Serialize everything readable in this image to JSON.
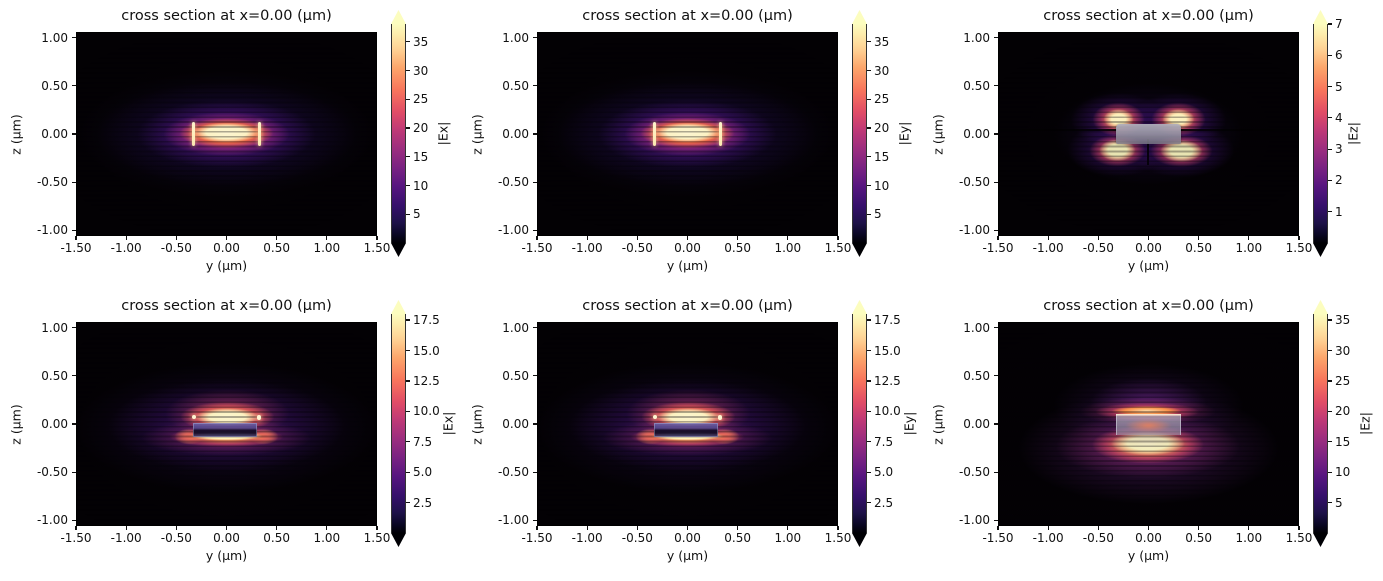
{
  "figure": {
    "rows": 2,
    "cols": 3,
    "background": "#ffffff",
    "colormap": "magma",
    "colormap_low": "#000004",
    "colormap_high": "#fcfdbf",
    "description": "2x3 grid of simulated electric-field magnitude cross sections of an optical waveguide"
  },
  "chart_data": [
    {
      "type": "heatmap",
      "position": "row 1, col 1",
      "title": "cross section at x=0.00 (μm)",
      "xlabel": "y (μm)",
      "ylabel": "z (μm)",
      "xlim": [
        -1.5,
        1.5
      ],
      "ylim": [
        -1.06,
        1.06
      ],
      "xticks": [
        -1.5,
        -1.0,
        -0.5,
        0.0,
        0.5,
        1.0,
        1.5
      ],
      "xtick_labels": [
        "-1.50",
        "-1.00",
        "-0.50",
        "0.00",
        "0.50",
        "1.00",
        "1.50"
      ],
      "yticks": [
        1.0,
        0.5,
        0.0,
        -0.5,
        -1.0
      ],
      "ytick_labels": [
        "1.00",
        "0.50",
        "0.00",
        "-0.50",
        "-1.00"
      ],
      "colorbar": {
        "label": "|Ex|",
        "vmin": 0,
        "vmax": 38.1,
        "ticks": [
          5,
          10,
          15,
          20,
          25,
          30,
          35
        ],
        "tick_labels": [
          "5",
          "10",
          "15",
          "20",
          "25",
          "30",
          "35"
        ],
        "colormap": "magma",
        "extend": "both"
      },
      "waveguide_overlay": false,
      "pattern": "single bright fundamental-mode lobe centered at y=0, z=0 (flat cream core |y|<0.3, |z|<0.08 μm), bright vertical edge lines at y=±0.33 μm, concentric purple decay halo, peak ~38"
    },
    {
      "type": "heatmap",
      "position": "row 1, col 2",
      "title": "cross section at x=0.00 (μm)",
      "xlabel": "y (μm)",
      "ylabel": "z (μm)",
      "xlim": [
        -1.5,
        1.5
      ],
      "ylim": [
        -1.06,
        1.06
      ],
      "xticks": [
        -1.5,
        -1.0,
        -0.5,
        0.0,
        0.5,
        1.0,
        1.5
      ],
      "xtick_labels": [
        "-1.50",
        "-1.00",
        "-0.50",
        "0.00",
        "0.50",
        "1.00",
        "1.50"
      ],
      "yticks": [
        1.0,
        0.5,
        0.0,
        -0.5,
        -1.0
      ],
      "ytick_labels": [
        "1.00",
        "0.50",
        "0.00",
        "-0.50",
        "-1.00"
      ],
      "colorbar": {
        "label": "|Ey|",
        "vmin": 0,
        "vmax": 38.1,
        "ticks": [
          5,
          10,
          15,
          20,
          25,
          30,
          35
        ],
        "tick_labels": [
          "5",
          "10",
          "15",
          "20",
          "25",
          "30",
          "35"
        ],
        "colormap": "magma",
        "extend": "both"
      },
      "waveguide_overlay": false,
      "pattern": "single bright fundamental-mode lobe centered at y=0, z=0 with bright vertical edge lines at y=±0.33 μm and purple decay halo, peak ~38"
    },
    {
      "type": "heatmap",
      "position": "row 1, col 3",
      "title": "cross section at x=0.00 (μm)",
      "xlabel": "y (μm)",
      "ylabel": "z (μm)",
      "xlim": [
        -1.5,
        1.5
      ],
      "ylim": [
        -1.06,
        1.06
      ],
      "xticks": [
        -1.5,
        -1.0,
        -0.5,
        0.0,
        0.5,
        1.0,
        1.5
      ],
      "xtick_labels": [
        "-1.50",
        "-1.00",
        "-0.50",
        "0.00",
        "0.50",
        "1.00",
        "1.50"
      ],
      "yticks": [
        1.0,
        0.5,
        0.0,
        -0.5,
        -1.0
      ],
      "ytick_labels": [
        "1.00",
        "0.50",
        "0.00",
        "-0.50",
        "-1.00"
      ],
      "colorbar": {
        "label": "|Ez|",
        "vmin": 0,
        "vmax": 7.0,
        "ticks": [
          1,
          2,
          3,
          4,
          5,
          6,
          7
        ],
        "tick_labels": [
          "1",
          "2",
          "3",
          "4",
          "5",
          "6",
          "7"
        ],
        "colormap": "magma",
        "extend": "both"
      },
      "waveguide_overlay": true,
      "pattern": "four-lobed quadrupole pattern at the waveguide corners (y=±0.3, z=±0.17 μm), semi-transparent grey waveguide rectangle (~0.66x0.21 μm) at center, dark nodal line along z≈0.05 μm, peak ~7"
    },
    {
      "type": "heatmap",
      "position": "row 2, col 1",
      "title": "cross section at x=0.00 (μm)",
      "xlabel": "y (μm)",
      "ylabel": "z (μm)",
      "xlim": [
        -1.5,
        1.5
      ],
      "ylim": [
        -1.06,
        1.06
      ],
      "xticks": [
        -1.5,
        -1.0,
        -0.5,
        0.0,
        0.5,
        1.0,
        1.5
      ],
      "xtick_labels": [
        "-1.50",
        "-1.00",
        "-0.50",
        "0.00",
        "0.50",
        "1.00",
        "1.50"
      ],
      "yticks": [
        1.0,
        0.5,
        0.0,
        -0.5,
        -1.0
      ],
      "ytick_labels": [
        "1.00",
        "0.50",
        "0.00",
        "-0.50",
        "-1.00"
      ],
      "colorbar": {
        "label": "|Ex|",
        "vmin": 0,
        "vmax": 18.0,
        "ticks": [
          2.5,
          5.0,
          7.5,
          10.0,
          12.5,
          15.0,
          17.5
        ],
        "tick_labels": [
          "2.5",
          "5.0",
          "7.5",
          "10.0",
          "12.5",
          "15.0",
          "17.5"
        ],
        "colormap": "magma",
        "extend": "both"
      },
      "waveguide_overlay": true,
      "pattern": "bright lens-shaped lobe above the waveguide (z≈+0.07 μm) and thin bright slab layer below it (z≈-0.15 μm); dark field inside the waveguide core with bright corner dots; peak ~18"
    },
    {
      "type": "heatmap",
      "position": "row 2, col 2",
      "title": "cross section at x=0.00 (μm)",
      "xlabel": "y (μm)",
      "ylabel": "z (μm)",
      "xlim": [
        -1.5,
        1.5
      ],
      "ylim": [
        -1.06,
        1.06
      ],
      "xticks": [
        -1.5,
        -1.0,
        -0.5,
        0.0,
        0.5,
        1.0,
        1.5
      ],
      "xtick_labels": [
        "-1.50",
        "-1.00",
        "-0.50",
        "0.00",
        "0.50",
        "1.00",
        "1.50"
      ],
      "yticks": [
        1.0,
        0.5,
        0.0,
        -0.5,
        -1.0
      ],
      "ytick_labels": [
        "1.00",
        "0.50",
        "0.00",
        "-0.50",
        "-1.00"
      ],
      "colorbar": {
        "label": "|Ey|",
        "vmin": 0,
        "vmax": 18.0,
        "ticks": [
          2.5,
          5.0,
          7.5,
          10.0,
          12.5,
          15.0,
          17.5
        ],
        "tick_labels": [
          "2.5",
          "5.0",
          "7.5",
          "10.0",
          "12.5",
          "15.0",
          "17.5"
        ],
        "colormap": "magma",
        "extend": "both"
      },
      "waveguide_overlay": true,
      "pattern": "bright lens-shaped lobe above the waveguide (z≈+0.07 μm) and thin bright slab layer below it (z≈-0.15 μm); dark field inside the waveguide core; peak ~18"
    },
    {
      "type": "heatmap",
      "position": "row 2, col 3",
      "title": "cross section at x=0.00 (μm)",
      "xlabel": "y (μm)",
      "ylabel": "z (μm)",
      "xlim": [
        -1.5,
        1.5
      ],
      "ylim": [
        -1.06,
        1.06
      ],
      "xticks": [
        -1.5,
        -1.0,
        -0.5,
        0.0,
        0.5,
        1.0,
        1.5
      ],
      "xtick_labels": [
        "-1.50",
        "-1.00",
        "-0.50",
        "0.00",
        "0.50",
        "1.00",
        "1.50"
      ],
      "yticks": [
        1.0,
        0.5,
        0.0,
        -0.5,
        -1.0
      ],
      "ytick_labels": [
        "1.00",
        "0.50",
        "0.00",
        "-0.50",
        "-1.00"
      ],
      "colorbar": {
        "label": "|Ez|",
        "vmin": 0,
        "vmax": 36.0,
        "ticks": [
          5,
          10,
          15,
          20,
          25,
          30,
          35
        ],
        "tick_labels": [
          "5",
          "10",
          "15",
          "20",
          "25",
          "30",
          "35"
        ],
        "colormap": "magma",
        "extend": "both"
      },
      "waveguide_overlay": true,
      "pattern": "strong orange band hugging the waveguide top edge (z≈+0.13 μm) and large cream lobe radiating into the substrate below (z≈-0.2 μm); entire substrate half-space (z<-0.1 μm) filled with decaying purple field; grey waveguide overlay with internal orange glow; peak ~36"
    }
  ]
}
